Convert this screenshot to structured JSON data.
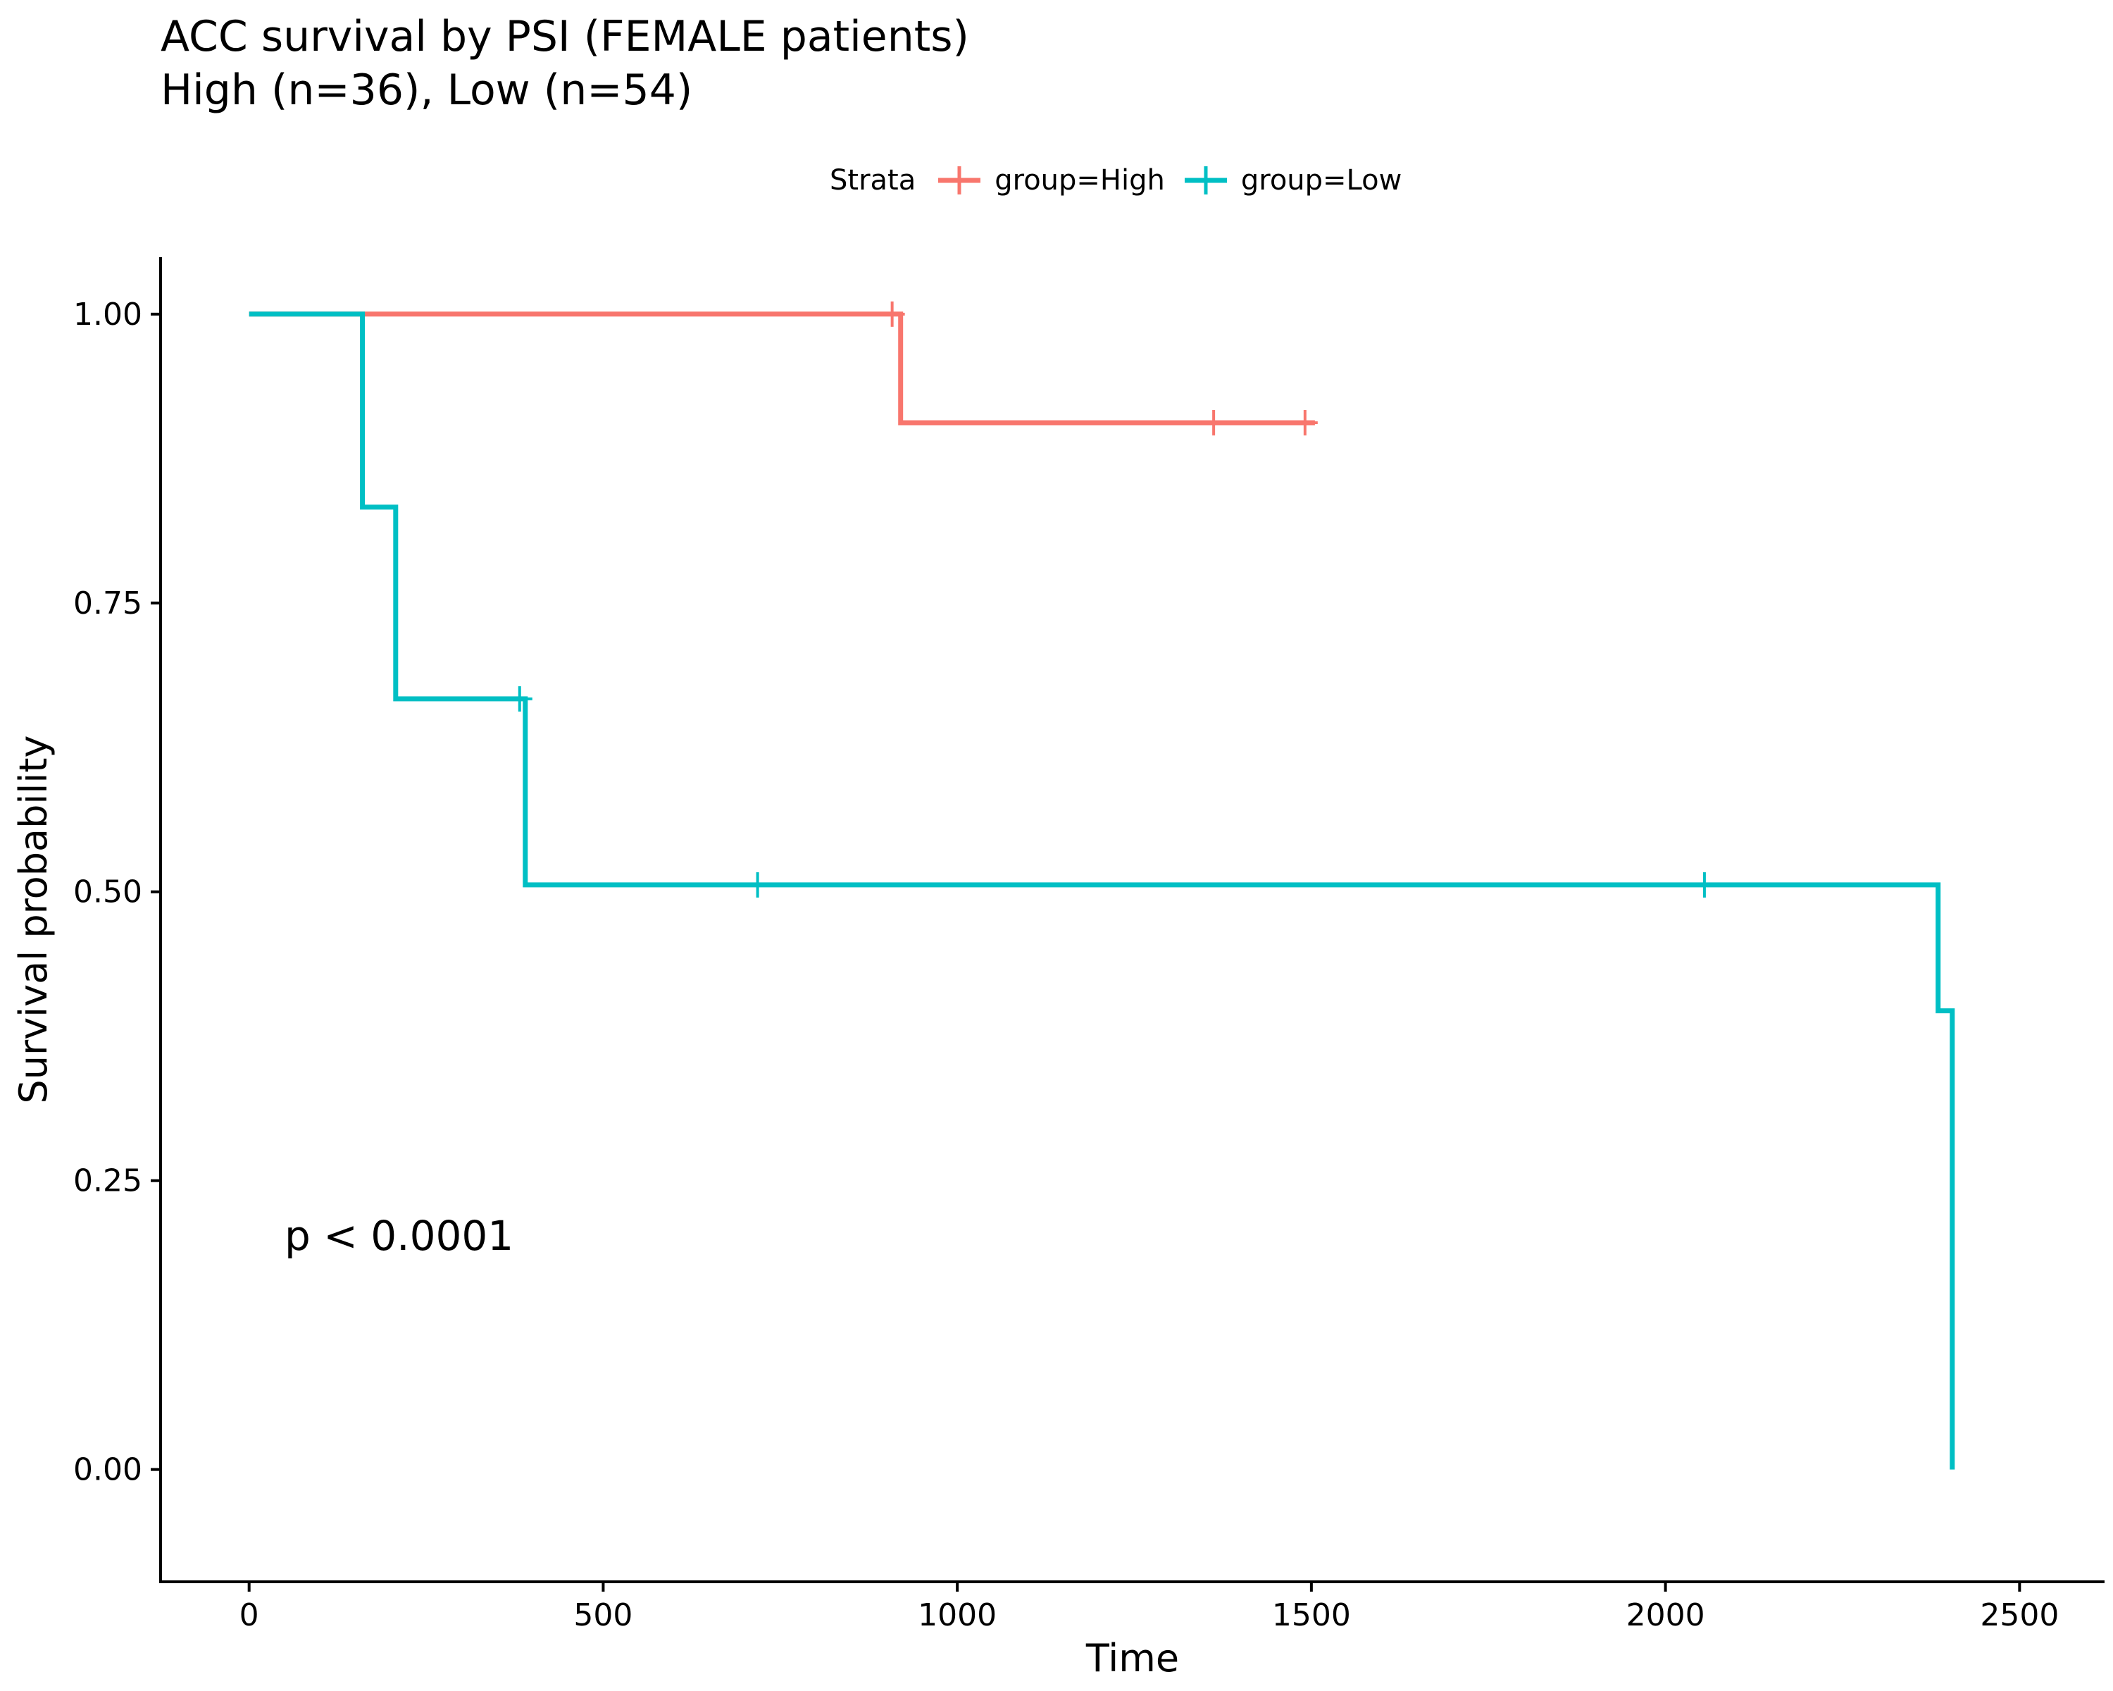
{
  "chart_data": {
    "type": "line",
    "title": "ACC survival by PSI (FEMALE patients)",
    "subtitle": "High (n=36), Low (n=54)",
    "xlabel": "Time",
    "ylabel": "Survival probability",
    "xlim": [
      -125,
      2620
    ],
    "ylim": [
      -0.0972,
      1.0493
    ],
    "x_ticks": [
      0,
      500,
      1000,
      1500,
      2000,
      2500
    ],
    "y_ticks": [
      0,
      0.25,
      0.5,
      0.75,
      1.0
    ],
    "x_tick_labels": [
      "0",
      "500",
      "1000",
      "1500",
      "2000",
      "2500"
    ],
    "y_tick_labels": [
      "0.00",
      "0.25",
      "0.50",
      "0.75",
      "1.00"
    ],
    "grid": false,
    "legend_title": "Strata",
    "legend_position": "top",
    "annotation": "p < 0.0001",
    "annotation_pos": {
      "x": 50,
      "y": 0.19
    },
    "series": [
      {
        "name": "group=High",
        "color": "#F8766D",
        "steps": [
          [
            0,
            1.0
          ],
          [
            920,
            1.0
          ],
          [
            920,
            0.906
          ],
          [
            1505,
            0.906
          ]
        ],
        "censored": [
          [
            908,
            1.0
          ],
          [
            1362,
            0.906
          ],
          [
            1491,
            0.906
          ]
        ]
      },
      {
        "name": "group=Low",
        "color": "#00BFC4",
        "steps": [
          [
            0,
            1.0
          ],
          [
            160,
            1.0
          ],
          [
            160,
            0.833
          ],
          [
            207,
            0.833
          ],
          [
            207,
            0.667
          ],
          [
            390,
            0.667
          ],
          [
            390,
            0.506
          ],
          [
            2385,
            0.506
          ],
          [
            2385,
            0.397
          ],
          [
            2405,
            0.397
          ],
          [
            2405,
            0.0
          ]
        ],
        "censored": [
          [
            382,
            0.667
          ],
          [
            718,
            0.506
          ],
          [
            2055,
            0.506
          ]
        ]
      }
    ]
  }
}
